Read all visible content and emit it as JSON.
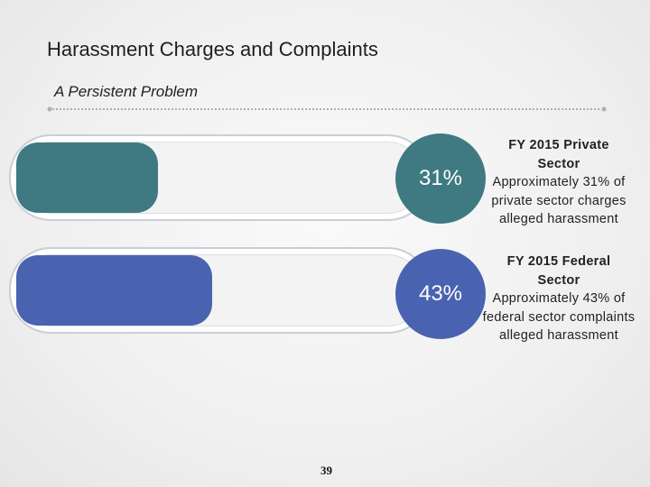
{
  "header": {
    "title": "Harassment Charges and Complaints",
    "subtitle": "A Persistent Problem"
  },
  "footer": {
    "page_number": "39"
  },
  "colors": {
    "private": "#3f7a82",
    "federal": "#4a63b0"
  },
  "chart_data": {
    "type": "bar",
    "orientation": "horizontal",
    "categories": [
      "FY 2015 Private Sector",
      "FY 2015 Federal Sector"
    ],
    "values": [
      31,
      43
    ],
    "value_labels": [
      "31%",
      "43%"
    ],
    "xlim": [
      0,
      100
    ],
    "unit": "%",
    "descriptions": [
      {
        "heading": [
          "FY 2015 Private",
          "Sector"
        ],
        "text": "Approximately 31% of private sector charges alleged harassment"
      },
      {
        "heading": [
          "FY 2015 Federal",
          "Sector"
        ],
        "text": "Approximately 43% of federal sector complaints alleged harassment"
      }
    ]
  }
}
